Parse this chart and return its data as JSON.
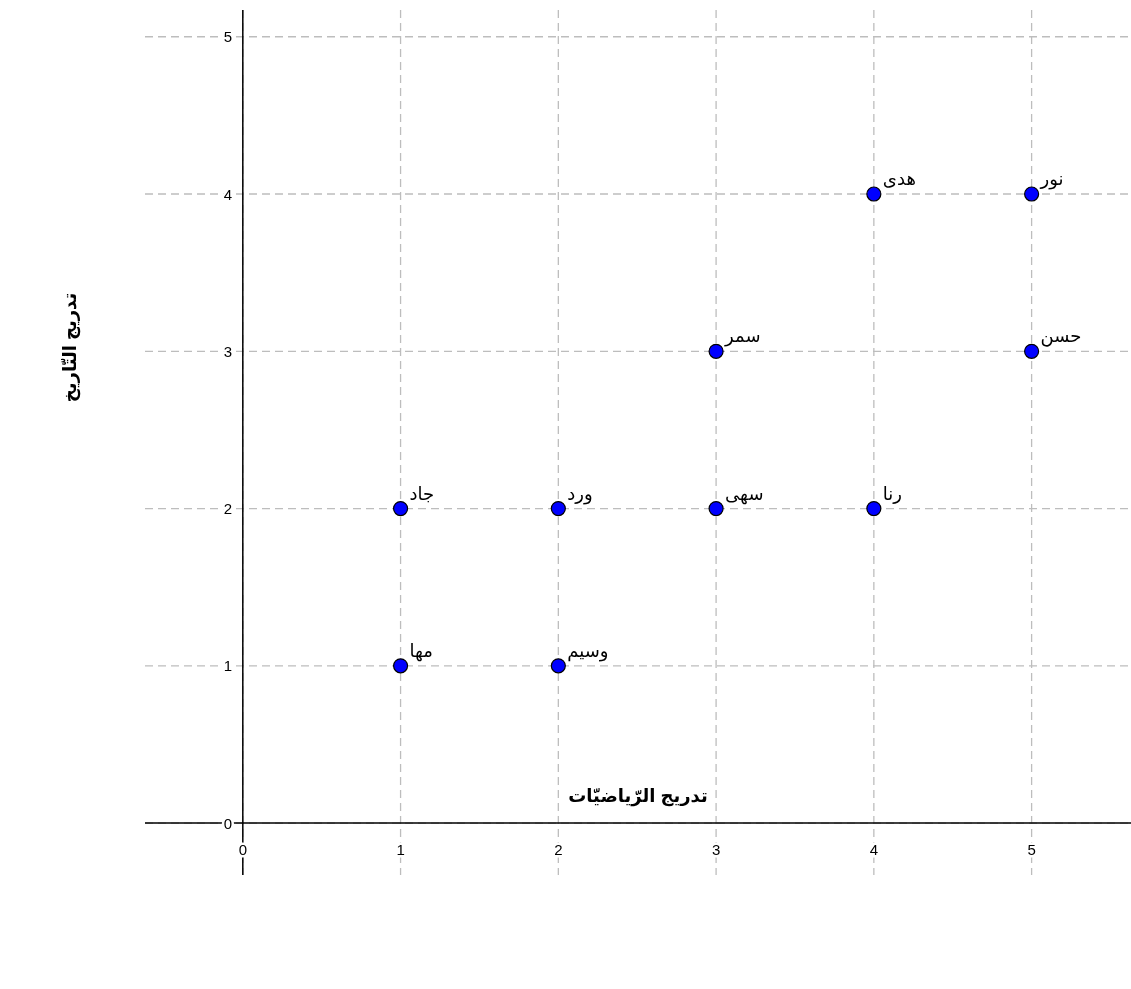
{
  "chart_data": {
    "type": "scatter",
    "xlabel": "تدريج الرّياضيّات",
    "ylabel": "تدريج التّاريخ",
    "x": [
      1,
      1,
      2,
      2,
      3,
      3,
      4,
      4,
      5,
      5
    ],
    "values": [
      1,
      2,
      1,
      2,
      2,
      3,
      2,
      4,
      3,
      4
    ],
    "color": "#0000ff",
    "marker": "circle",
    "grid": true,
    "xlim": [
      -0.62,
      5.63
    ],
    "ylim": [
      -0.33,
      5.17
    ],
    "xticks": [
      0,
      1,
      2,
      3,
      4,
      5
    ],
    "yticks": [
      0,
      1,
      2,
      3,
      4,
      5
    ],
    "annotations": [
      {
        "text": "مها",
        "x": 1,
        "y": 1
      },
      {
        "text": "جاد",
        "x": 1,
        "y": 2
      },
      {
        "text": "وسيم",
        "x": 2,
        "y": 1
      },
      {
        "text": "ورد",
        "x": 2,
        "y": 2
      },
      {
        "text": "سهى",
        "x": 3,
        "y": 2
      },
      {
        "text": "سمر",
        "x": 3,
        "y": 3
      },
      {
        "text": "رنا",
        "x": 4,
        "y": 2
      },
      {
        "text": "هدى",
        "x": 4,
        "y": 4
      },
      {
        "text": "حسن",
        "x": 5,
        "y": 3
      },
      {
        "text": "نور",
        "x": 5,
        "y": 4
      }
    ]
  }
}
